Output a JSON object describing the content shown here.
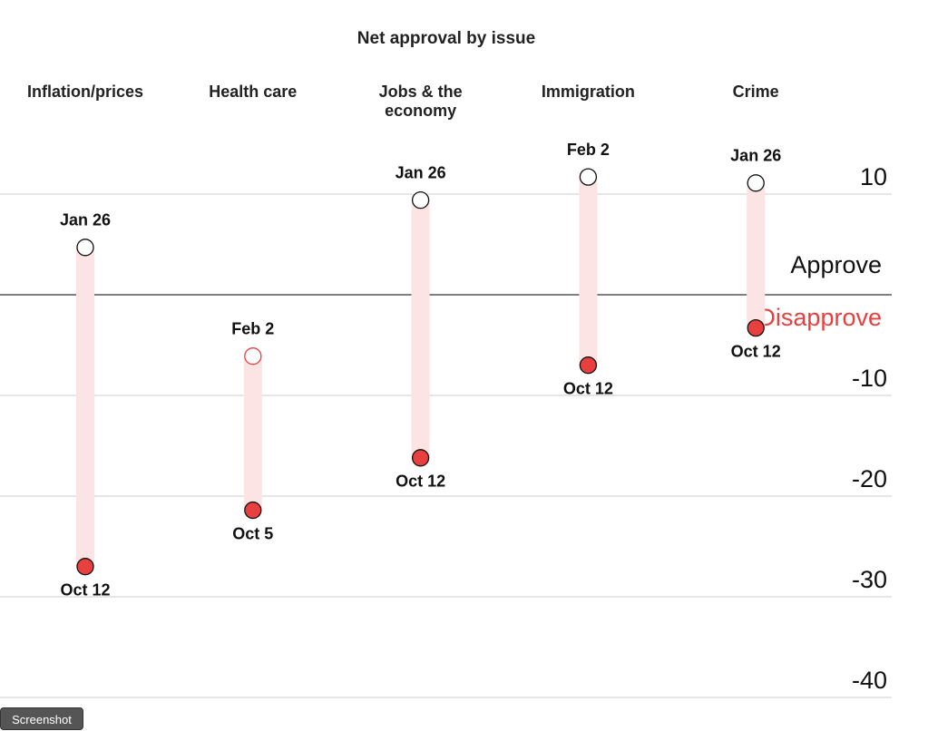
{
  "chart_data": {
    "type": "dumbbell",
    "title": "Net approval by issue",
    "categories": [
      "Inflation/prices",
      "Health care",
      "Jobs & the economy",
      "Immigration",
      "Crime"
    ],
    "start": {
      "labels": [
        "Jan 26",
        "Feb 2",
        "Jan 26",
        "Feb 2",
        "Jan 26"
      ],
      "values": [
        4.7,
        -6.1,
        9.4,
        11.7,
        11.1
      ]
    },
    "end": {
      "labels": [
        "Oct 12",
        "Oct 5",
        "Oct 12",
        "Oct 12",
        "Oct 12"
      ],
      "values": [
        -27,
        -21.4,
        -16.2,
        -7,
        -3.3
      ]
    },
    "ylim": [
      -40,
      16
    ],
    "yticks": [
      10,
      -10,
      -20,
      -30,
      -40
    ],
    "baseline": 0,
    "above_label": "Approve",
    "below_label": "Disapprove",
    "bar_color": "#fde4e4",
    "end_color": "#e8403f",
    "negative_color": "#e8403f",
    "grid": true
  },
  "screenshot_label": "Screenshot"
}
